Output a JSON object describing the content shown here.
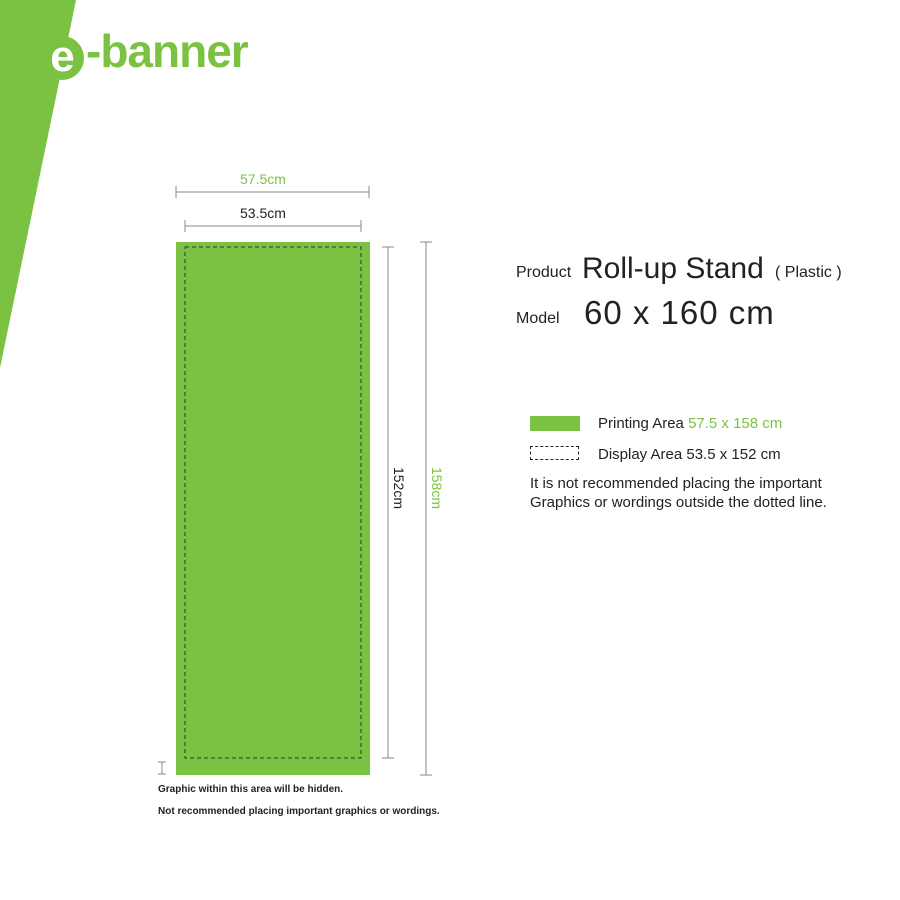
{
  "brand": {
    "prefix": "e",
    "rest": "-banner"
  },
  "dimensions": {
    "outer_width": "57.5cm",
    "inner_width": "53.5cm",
    "inner_height": "152cm",
    "outer_height": "158cm"
  },
  "product": {
    "label": "Product",
    "name": "Roll-up Stand",
    "material": "( Plastic )"
  },
  "model": {
    "label": "Model",
    "value": "60 x 160 cm"
  },
  "legend": {
    "printing_label": "Printing Area",
    "printing_size": "57.5 x 158 cm",
    "display_label": "Display Area 53.5 x 152 cm"
  },
  "note": {
    "line1": "It is not recommended placing the important",
    "line2": "Graphics or wordings outside the dotted line."
  },
  "hidden_notes": {
    "line1": "Graphic within this area will be hidden.",
    "line2": "Not recommended placing important graphics or wordings."
  },
  "colors": {
    "accent": "#7cc242",
    "text": "#222222",
    "dim_line": "#888888"
  }
}
